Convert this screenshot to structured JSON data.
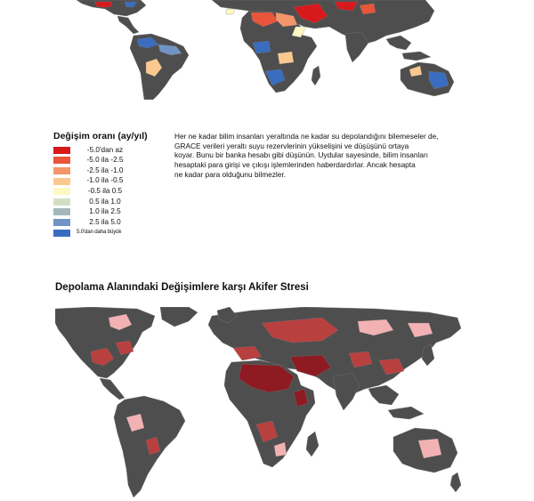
{
  "top_map": {
    "legend": {
      "title": "Değişim oranı (ay/yıl)",
      "items": [
        {
          "label": "-5.0'dan az",
          "color": "#d7191c"
        },
        {
          "label": "-5.0 ila -2.5",
          "color": "#e8553a"
        },
        {
          "label": "-2.5 ila -1.0",
          "color": "#f4956a"
        },
        {
          "label": "-1.0 ila -0.5",
          "color": "#fbc98f"
        },
        {
          "label": "-0.5 ila 0.5",
          "color": "#fdf8c4"
        },
        {
          "label": "0.5 ila 1.0",
          "color": "#d4dfc2"
        },
        {
          "label": "1.0 ila 2.5",
          "color": "#a4b7bd"
        },
        {
          "label": "2.5 ila 5.0",
          "color": "#7095c4"
        },
        {
          "label": "5.0'dan daha büyük",
          "color": "#3a6cc0"
        }
      ]
    },
    "explanation": [
      "Her ne kadar bilim insanları yeraltında ne kadar su depolandığını bilemeseler de,",
      "GRACE verileri yeraltı suyu rezervlerinin yükselişini ve düşüşünü ortaya",
      "koyar. Bunu bir banka hesabı gibi düşünün. Uydular sayesinde, bilim insanları",
      "hesaptaki para girişi ve çıkışı işlemlerinden haberdardırlar. Ancak hesapta",
      "ne kadar para olduğunu bilmezler."
    ]
  },
  "bottom_map": {
    "title": "Depolama Alanındaki Değişimlere karşı Akifer Stresi"
  },
  "colors": {
    "land": "#4e4e4e",
    "border": "#7a7a7a",
    "stress_high": "#8e1b22",
    "stress_mid": "#b8403f",
    "stress_low": "#f2b2b4"
  }
}
